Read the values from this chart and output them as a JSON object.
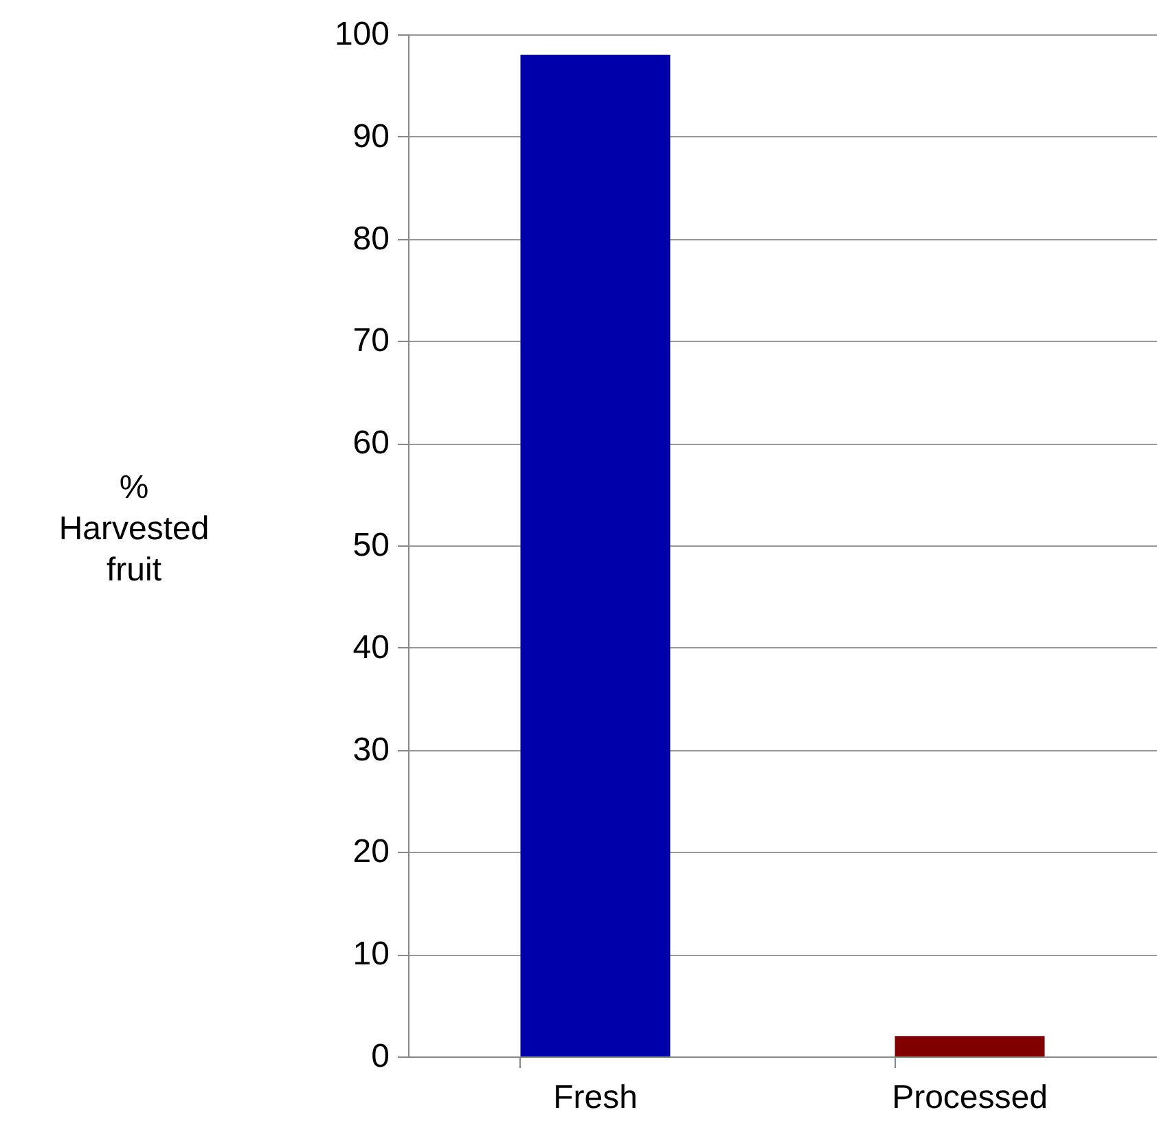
{
  "chart_data": {
    "type": "bar",
    "ylabel": "% Harvested fruit",
    "categories": [
      "Fresh",
      "Processed"
    ],
    "values": [
      98,
      2
    ],
    "colors": [
      "#0000aa",
      "#800000"
    ],
    "ylim": [
      0,
      100
    ],
    "yticks": [
      0,
      10,
      20,
      30,
      40,
      50,
      60,
      70,
      80,
      90,
      100
    ],
    "grid": "y"
  }
}
